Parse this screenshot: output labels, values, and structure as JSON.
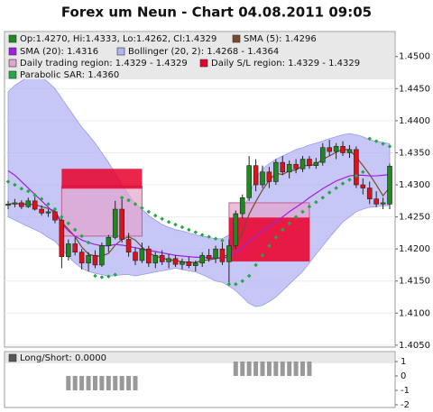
{
  "chart_data": {
    "type": "candlestick",
    "title": "Forex um Neun - Chart 04.08.2011 09:05",
    "candles": {
      "name": "Op:1.4270, Hi:1.4333, Lo:1.4262, Cl:1.4329",
      "color": "#1e8a1e",
      "up_color": "#1e8a1e",
      "down_color": "#e0101a",
      "open": [
        1.4268,
        1.427,
        1.4272,
        1.4266,
        1.4275,
        1.4262,
        1.4256,
        1.4258,
        1.4245,
        1.4188,
        1.4208,
        1.4195,
        1.4178,
        1.419,
        1.4175,
        1.4205,
        1.4218,
        1.4262,
        1.4215,
        1.4195,
        1.4182,
        1.42,
        1.4178,
        1.419,
        1.418,
        1.4185,
        1.4176,
        1.418,
        1.4174,
        1.4178,
        1.419,
        1.4185,
        1.42,
        1.418,
        1.4205,
        1.4255,
        1.428,
        1.433,
        1.43,
        1.432,
        1.4305,
        1.4335,
        1.432,
        1.4332,
        1.4325,
        1.434,
        1.433,
        1.4335,
        1.4358,
        1.4352,
        1.436,
        1.435,
        1.4355,
        1.43,
        1.4295,
        1.4278,
        1.427,
        1.427
      ],
      "high": [
        1.4275,
        1.4278,
        1.4276,
        1.428,
        1.4282,
        1.4268,
        1.4262,
        1.4262,
        1.425,
        1.4215,
        1.4218,
        1.42,
        1.4195,
        1.4198,
        1.421,
        1.4222,
        1.4275,
        1.428,
        1.4225,
        1.4202,
        1.421,
        1.4205,
        1.4195,
        1.4198,
        1.4192,
        1.419,
        1.4185,
        1.4188,
        1.4182,
        1.4195,
        1.42,
        1.4205,
        1.421,
        1.4215,
        1.426,
        1.4285,
        1.4345,
        1.434,
        1.433,
        1.4328,
        1.434,
        1.4345,
        1.4338,
        1.434,
        1.4345,
        1.4345,
        1.4342,
        1.4365,
        1.437,
        1.4365,
        1.4368,
        1.4362,
        1.436,
        1.431,
        1.4305,
        1.429,
        1.428,
        1.4333
      ],
      "low": [
        1.4262,
        1.4265,
        1.4262,
        1.4264,
        1.426,
        1.4252,
        1.425,
        1.424,
        1.417,
        1.4182,
        1.419,
        1.4168,
        1.4165,
        1.417,
        1.4172,
        1.4195,
        1.4215,
        1.421,
        1.4188,
        1.4175,
        1.4178,
        1.4172,
        1.417,
        1.4175,
        1.417,
        1.4172,
        1.4168,
        1.417,
        1.4165,
        1.4172,
        1.418,
        1.4178,
        1.4175,
        1.4145,
        1.42,
        1.4248,
        1.4275,
        1.429,
        1.4295,
        1.4295,
        1.43,
        1.4315,
        1.431,
        1.4318,
        1.432,
        1.4325,
        1.4325,
        1.433,
        1.4345,
        1.434,
        1.4345,
        1.4342,
        1.4295,
        1.4285,
        1.427,
        1.4265,
        1.4262,
        1.4262
      ],
      "close": [
        1.427,
        1.4272,
        1.4266,
        1.4275,
        1.4262,
        1.4256,
        1.4258,
        1.4245,
        1.4188,
        1.4208,
        1.4195,
        1.4178,
        1.419,
        1.4175,
        1.4205,
        1.4218,
        1.4262,
        1.4215,
        1.4195,
        1.4182,
        1.42,
        1.4178,
        1.419,
        1.418,
        1.4185,
        1.4176,
        1.418,
        1.4174,
        1.4178,
        1.419,
        1.4185,
        1.42,
        1.418,
        1.4205,
        1.4255,
        1.428,
        1.433,
        1.43,
        1.432,
        1.4305,
        1.4335,
        1.432,
        1.4332,
        1.4325,
        1.434,
        1.433,
        1.4335,
        1.4358,
        1.4352,
        1.436,
        1.435,
        1.4355,
        1.43,
        1.4295,
        1.4278,
        1.427,
        1.4272,
        1.4329
      ]
    },
    "lines": [
      {
        "name": "SMA (5): 1.4296",
        "color": "#7a4a2a",
        "values": [
          1.427,
          1.4271,
          1.427,
          1.427,
          1.4269,
          1.4266,
          1.4263,
          1.4259,
          1.4242,
          1.4231,
          1.4219,
          1.4203,
          1.4192,
          1.4189,
          1.4189,
          1.4193,
          1.4206,
          1.4215,
          1.4219,
          1.4214,
          1.4203,
          1.4194,
          1.4189,
          1.4186,
          1.4183,
          1.4182,
          1.418,
          1.4179,
          1.4179,
          1.4182,
          1.4183,
          1.4185,
          1.4187,
          1.4192,
          1.4207,
          1.4225,
          1.4254,
          1.4274,
          1.4292,
          1.4307,
          1.4318,
          1.4316,
          1.4322,
          1.4323,
          1.433,
          1.433,
          1.4332,
          1.434,
          1.4345,
          1.4351,
          1.4355,
          1.4355,
          1.4343,
          1.433,
          1.4316,
          1.43,
          1.4283,
          1.4296
        ]
      },
      {
        "name": "SMA (20): 1.4316",
        "color": "#a020e0",
        "values": [
          1.4322,
          1.4315,
          1.4305,
          1.4295,
          1.4285,
          1.4275,
          1.4265,
          1.4255,
          1.424,
          1.4228,
          1.422,
          1.4214,
          1.421,
          1.4207,
          1.4205,
          1.4205,
          1.4207,
          1.4206,
          1.4204,
          1.4202,
          1.42,
          1.4198,
          1.4196,
          1.4194,
          1.4192,
          1.419,
          1.4189,
          1.4188,
          1.4187,
          1.4187,
          1.4186,
          1.4186,
          1.4185,
          1.4188,
          1.4195,
          1.4202,
          1.4212,
          1.422,
          1.4228,
          1.4235,
          1.4243,
          1.425,
          1.4258,
          1.4265,
          1.4272,
          1.428,
          1.4287,
          1.4294,
          1.43,
          1.4306,
          1.431,
          1.4314,
          1.4315,
          1.4315,
          1.4314,
          1.4314,
          1.4315,
          1.4316
        ]
      }
    ],
    "band": {
      "name": "Bollinger (20, 2): 1.4268 - 1.4364",
      "color": "#b4b4f4",
      "upper": [
        1.4445,
        1.4455,
        1.4462,
        1.4468,
        1.447,
        1.4468,
        1.446,
        1.445,
        1.4435,
        1.442,
        1.4405,
        1.439,
        1.4378,
        1.4365,
        1.435,
        1.4335,
        1.4318,
        1.43,
        1.4285,
        1.427,
        1.4262,
        1.4252,
        1.4245,
        1.4238,
        1.4234,
        1.423,
        1.4228,
        1.4225,
        1.4222,
        1.422,
        1.4218,
        1.4216,
        1.4216,
        1.4222,
        1.4235,
        1.4255,
        1.4285,
        1.431,
        1.4325,
        1.4333,
        1.434,
        1.4345,
        1.435,
        1.4355,
        1.4358,
        1.4362,
        1.4365,
        1.4368,
        1.4372,
        1.4375,
        1.4378,
        1.438,
        1.4378,
        1.4375,
        1.437,
        1.4368,
        1.4366,
        1.4364
      ],
      "lower": [
        1.425,
        1.4245,
        1.424,
        1.4235,
        1.423,
        1.4225,
        1.4218,
        1.4212,
        1.42,
        1.4188,
        1.4178,
        1.417,
        1.4165,
        1.4162,
        1.416,
        1.4158,
        1.4158,
        1.416,
        1.416,
        1.4158,
        1.416,
        1.4162,
        1.4164,
        1.4166,
        1.4168,
        1.417,
        1.4168,
        1.4166,
        1.4164,
        1.416,
        1.4155,
        1.415,
        1.4148,
        1.4142,
        1.4135,
        1.4125,
        1.4115,
        1.411,
        1.4112,
        1.4118,
        1.4125,
        1.4135,
        1.4145,
        1.4155,
        1.4165,
        1.4178,
        1.4192,
        1.4205,
        1.4218,
        1.423,
        1.4242,
        1.425,
        1.4258,
        1.4262,
        1.4265,
        1.4266,
        1.4267,
        1.4268
      ]
    },
    "regions": [
      {
        "name": "Daily trading region: 1.4329 - 1.4329",
        "color": "#e4a4cc",
        "areas": [
          {
            "from": 8,
            "to": 20,
            "low": 1.422,
            "high": 1.4298
          },
          {
            "from": 33,
            "to": 45,
            "low": 1.4181,
            "high": 1.4272
          }
        ]
      },
      {
        "name": "Daily S/L region: 1.4329 - 1.4329",
        "color": "#e8002a",
        "areas": [
          {
            "from": 8,
            "to": 20,
            "low": 1.4294,
            "high": 1.4325
          },
          {
            "from": 33,
            "to": 45,
            "low": 1.4181,
            "high": 1.4249
          }
        ]
      }
    ],
    "dots": {
      "name": "Parabolic SAR: 1.4360",
      "color": "#22a844",
      "values": [
        1.4305,
        1.43,
        1.4294,
        1.429,
        1.4284,
        1.4278,
        1.427,
        1.4262,
        1.425,
        1.424,
        1.423,
        1.422,
        1.421,
        1.4158,
        1.4156,
        1.4157,
        1.416,
        1.428,
        1.4276,
        1.427,
        1.4264,
        1.4258,
        1.4252,
        1.4247,
        1.4242,
        1.4238,
        1.4234,
        1.423,
        1.4226,
        1.4222,
        1.4219,
        1.4216,
        1.4213,
        1.4145,
        1.4145,
        1.415,
        1.4158,
        1.4175,
        1.419,
        1.4205,
        1.4218,
        1.423,
        1.424,
        1.425,
        1.4258,
        1.4266,
        1.4273,
        1.428,
        1.4288,
        1.4295,
        1.4302,
        1.4308,
        1.4314,
        1.432,
        1.4372,
        1.4368,
        1.4364,
        1.436
      ]
    },
    "ylim": [
      1.4047,
      1.4539
    ],
    "yticks": [
      {
        "value": 1.405,
        "label": "1.4050"
      },
      {
        "value": 1.41,
        "label": "1.4100"
      },
      {
        "value": 1.415,
        "label": "1.4150"
      },
      {
        "value": 1.42,
        "label": "1.4200"
      },
      {
        "value": 1.425,
        "label": "1.4250"
      },
      {
        "value": 1.43,
        "label": "1.4300"
      },
      {
        "value": 1.435,
        "label": "1.4350"
      },
      {
        "value": 1.44,
        "label": "1.4400"
      },
      {
        "value": 1.445,
        "label": "1.4450"
      },
      {
        "value": 1.45,
        "label": "1.4500"
      }
    ],
    "grid": true,
    "subchart": {
      "type": "bar",
      "name": "Long/Short: 0.0000",
      "color": "#999999",
      "values": [
        0,
        0,
        0,
        0,
        0,
        0,
        0,
        0,
        0,
        -1,
        -1,
        -1,
        -1,
        -1,
        -1,
        -1,
        -1,
        -1,
        -1,
        -1,
        0,
        0,
        0,
        0,
        0,
        0,
        0,
        0,
        0,
        0,
        0,
        0,
        0,
        0,
        1,
        1,
        1,
        1,
        1,
        1,
        1,
        1,
        1,
        1,
        1,
        1,
        0,
        0,
        0,
        0,
        0,
        0,
        0,
        0,
        0,
        0,
        0,
        0
      ],
      "ylim": [
        -2.19,
        1.69
      ],
      "yticks": [
        1,
        0,
        -1,
        -2
      ]
    }
  }
}
